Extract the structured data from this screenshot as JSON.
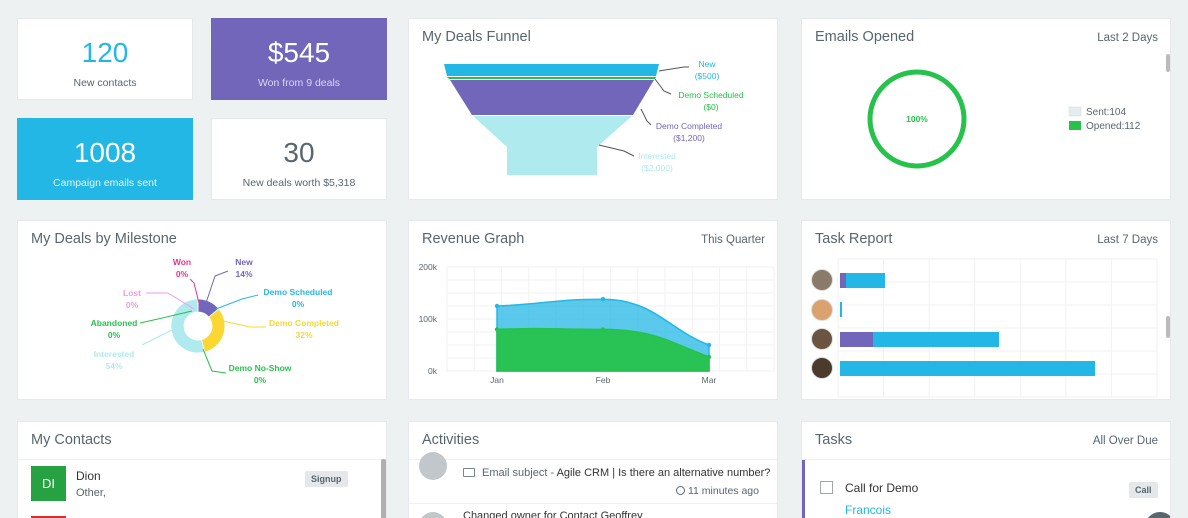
{
  "stats": {
    "new_contacts": {
      "value": "120",
      "label": "New contacts"
    },
    "won": {
      "value": "$545",
      "label": "Won from 9 deals"
    },
    "campaign": {
      "value": "1008",
      "label": "Campaign emails sent"
    },
    "new_deals": {
      "value": "30",
      "label": "New deals worth $5,318"
    }
  },
  "funnel": {
    "title": "My Deals Funnel",
    "stages": [
      {
        "name": "New",
        "amount": "($500)",
        "color": "#23b7e5"
      },
      {
        "name": "Demo Scheduled",
        "amount": "($0)",
        "color": "#27c24c"
      },
      {
        "name": "Demo Completed",
        "amount": "($1,200)",
        "color": "#7266ba"
      },
      {
        "name": "Interested",
        "amount": "($2,000)",
        "color": "#aeeaee"
      }
    ]
  },
  "emails": {
    "title": "Emails Opened",
    "range": "Last 2 Days",
    "percent": "100%",
    "legend": [
      {
        "label": "Sent:104",
        "color": "#e4eef0"
      },
      {
        "label": "Opened:112",
        "color": "#27c24c"
      }
    ]
  },
  "milestone": {
    "title": "My Deals by Milestone",
    "slices": [
      {
        "name": "Won",
        "pct": "0%",
        "value": 0,
        "color": "#e8358a"
      },
      {
        "name": "New",
        "pct": "14%",
        "value": 14,
        "color": "#7266ba"
      },
      {
        "name": "Demo Scheduled",
        "pct": "0%",
        "value": 0,
        "color": "#23b7e5"
      },
      {
        "name": "Demo Completed",
        "pct": "32%",
        "value": 32,
        "color": "#fad733"
      },
      {
        "name": "Demo No-Show",
        "pct": "0%",
        "value": 0,
        "color": "#27c24c"
      },
      {
        "name": "Interested",
        "pct": "54%",
        "value": 54,
        "color": "#aeeaee"
      },
      {
        "name": "Abandoned",
        "pct": "0%",
        "value": 0,
        "color": "#27c24c"
      },
      {
        "name": "Lost",
        "pct": "0%",
        "value": 0,
        "color": "#f19aeb"
      }
    ]
  },
  "revenue": {
    "title": "Revenue Graph",
    "range": "This Quarter"
  },
  "chart_data": {
    "type": "area",
    "categories": [
      "Jan",
      "Feb",
      "Mar"
    ],
    "yticks": [
      "200k",
      "100k",
      "0k"
    ],
    "ylim": [
      0,
      200000
    ],
    "series": [
      {
        "values": [
          125000,
          138000,
          50000
        ],
        "color": "#23b7e5"
      },
      {
        "values": [
          80000,
          80000,
          27000
        ],
        "color": "#27c24c"
      }
    ]
  },
  "tasks_report": {
    "title": "Task Report",
    "range": "Last 7 Days",
    "rows": [
      {
        "purple": 2,
        "blue": 13
      },
      {
        "purple": 0,
        "blue": 0.5
      },
      {
        "purple": 11,
        "blue": 42
      },
      {
        "purple": 0,
        "blue": 85
      }
    ]
  },
  "contacts": {
    "title": "My Contacts",
    "items": [
      {
        "initials": "DI",
        "name": "Dion",
        "sub": "Other,",
        "tag": "Signup",
        "color": "#27a243"
      }
    ]
  },
  "activities": {
    "title": "Activities",
    "items": [
      {
        "text_prefix": "Email subject - ",
        "text_main": "Agile CRM | Is there an alternative number?",
        "time": "11 minutes ago"
      },
      {
        "text_main": "Changed owner for Contact Geoffrey"
      }
    ]
  },
  "tasks": {
    "title": "Tasks",
    "range": "All Over Due",
    "items": [
      {
        "name": "Call for Demo",
        "tag": "Call",
        "contact": "Francois"
      }
    ]
  }
}
